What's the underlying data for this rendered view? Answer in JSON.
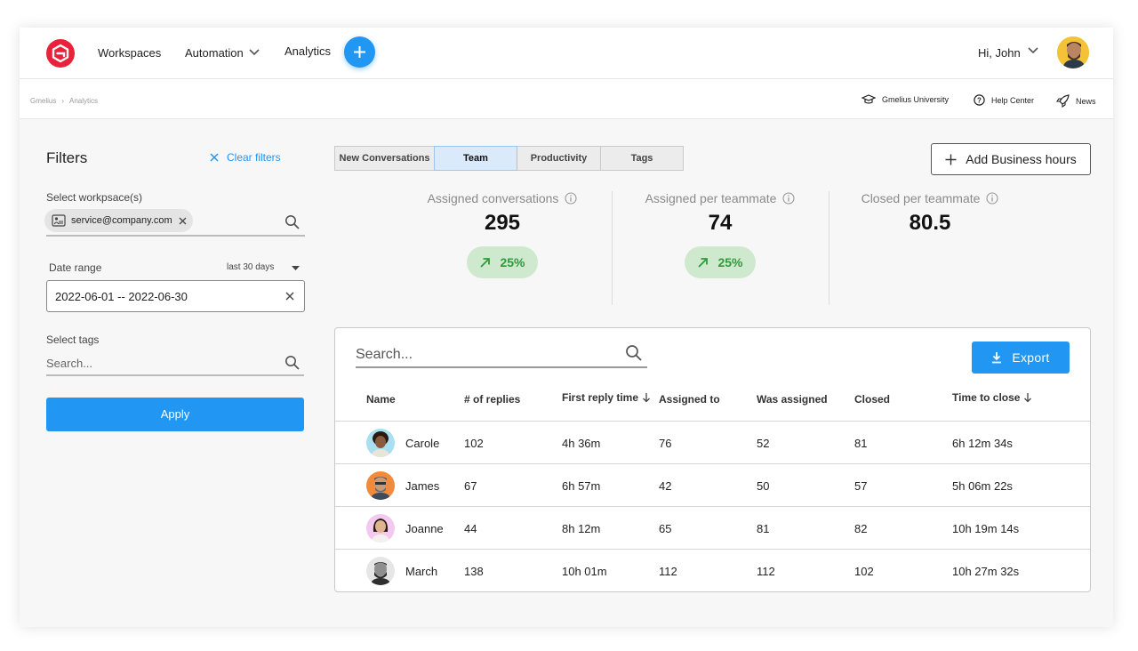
{
  "nav": {
    "workspaces": "Workspaces",
    "automation": "Automation",
    "analytics": "Analytics",
    "greeting": "Hi, John"
  },
  "subbar": {
    "breadcrumb": [
      "Gmelius",
      "Analytics"
    ],
    "university": "Gmelius University",
    "help": "Help Center",
    "news": "News"
  },
  "filters": {
    "title": "Filters",
    "clear": "Clear filters",
    "workspace_label": "Select workpsace(s)",
    "workspace_chip": "service@company.com",
    "date_label": "Date range",
    "date_select": "last 30 days",
    "date_value": "2022-06-01 -- 2022-06-30",
    "tags_label": "Select tags",
    "tags_placeholder": "Search...",
    "apply": "Apply"
  },
  "tabs": [
    "New Conversations",
    "Team",
    "Productivity",
    "Tags"
  ],
  "active_tab": "Team",
  "business_hours": "Add Business hours",
  "stats": [
    {
      "label": "Assigned conversations",
      "value": "295",
      "change": "25%"
    },
    {
      "label": "Assigned per teammate",
      "value": "74",
      "change": "25%"
    },
    {
      "label": "Closed per teammate",
      "value": "80.5",
      "change": ""
    }
  ],
  "table": {
    "search_placeholder": "Search...",
    "export": "Export",
    "columns": [
      "Name",
      "# of replies",
      "First reply time",
      "Assigned to",
      "Was assigned",
      "Closed",
      "Time to close"
    ],
    "rows": [
      [
        "Carole",
        "102",
        "4h 36m",
        "76",
        "52",
        "81",
        "6h 12m 34s"
      ],
      [
        "James",
        "67",
        "6h 57m",
        "42",
        "50",
        "57",
        "5h 06m 22s"
      ],
      [
        "Joanne",
        "44",
        "8h 12m",
        "65",
        "81",
        "82",
        "10h 19m 14s"
      ],
      [
        "March",
        "138",
        "10h 01m",
        "112",
        "112",
        "102",
        "10h 27m 32s"
      ]
    ]
  },
  "colors": {
    "accent": "#2196f3",
    "brand": "#e8223a",
    "positive": "#2e9a3c",
    "positive_bg": "#cfe9cf"
  }
}
